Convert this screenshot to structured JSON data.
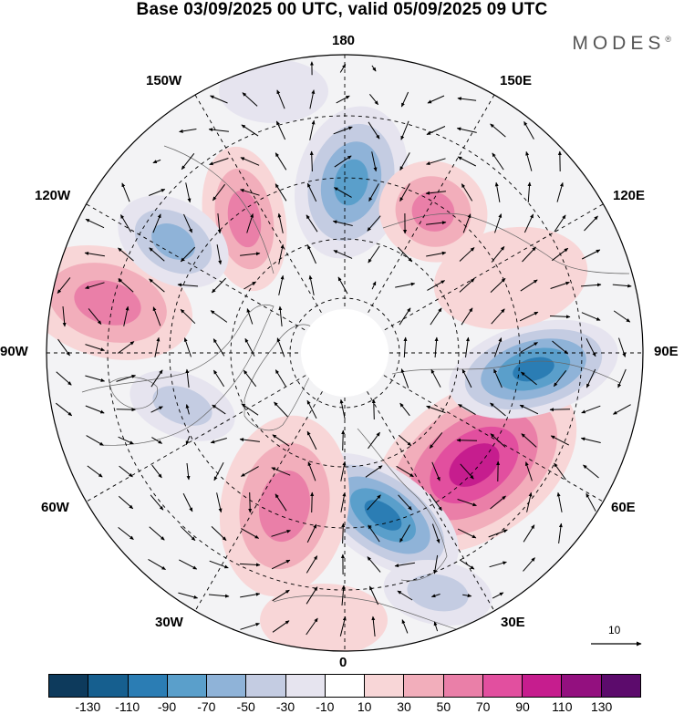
{
  "header": {
    "title": "Base 03/09/2025 00 UTC, valid 05/09/2025 09 UTC",
    "brand": "MODES",
    "brand_mark": "®"
  },
  "map": {
    "projection": "north polar stereographic",
    "longitude_labels": {
      "top": "180",
      "top_left": "150W",
      "top_right": "150E",
      "upper_left": "120W",
      "upper_right": "120E",
      "left": "90W",
      "right": "90E",
      "lower_left": "60W",
      "lower_right": "60E",
      "bottom_left": "30W",
      "bottom_right": "30E",
      "bottom": "0"
    },
    "anomaly_centers": [
      {
        "type": "positive",
        "longitude": "60E",
        "peak": "90-110"
      },
      {
        "type": "negative",
        "longitude": "90E",
        "peak": "-70 to -90"
      },
      {
        "type": "negative",
        "longitude": "15E",
        "peak": "-70 to -90"
      },
      {
        "type": "positive",
        "longitude": "30W",
        "peak": "50-70"
      },
      {
        "type": "positive",
        "longitude": "105W",
        "peak": "50-70"
      },
      {
        "type": "positive",
        "longitude": "155W",
        "peak": "50-70"
      },
      {
        "type": "negative",
        "longitude": "170E",
        "peak": "-50 to -70"
      },
      {
        "type": "positive",
        "longitude": "150E",
        "peak": "50-70"
      }
    ]
  },
  "reference_vector": {
    "label": "10"
  },
  "colorbar": {
    "ticks": [
      "-130",
      "-110",
      "-90",
      "-70",
      "-50",
      "-30",
      "-10",
      "10",
      "30",
      "50",
      "70",
      "90",
      "110",
      "130"
    ],
    "colors": [
      "#0d3a5c",
      "#165f8f",
      "#2b7db4",
      "#5a9fcb",
      "#8fb3d8",
      "#c4cce2",
      "#e6e4ef",
      "#ffffff",
      "#f8d6d7",
      "#f2aebb",
      "#ea7fa8",
      "#e24f9f",
      "#c61d8e",
      "#93107f",
      "#5c0b6c"
    ]
  }
}
